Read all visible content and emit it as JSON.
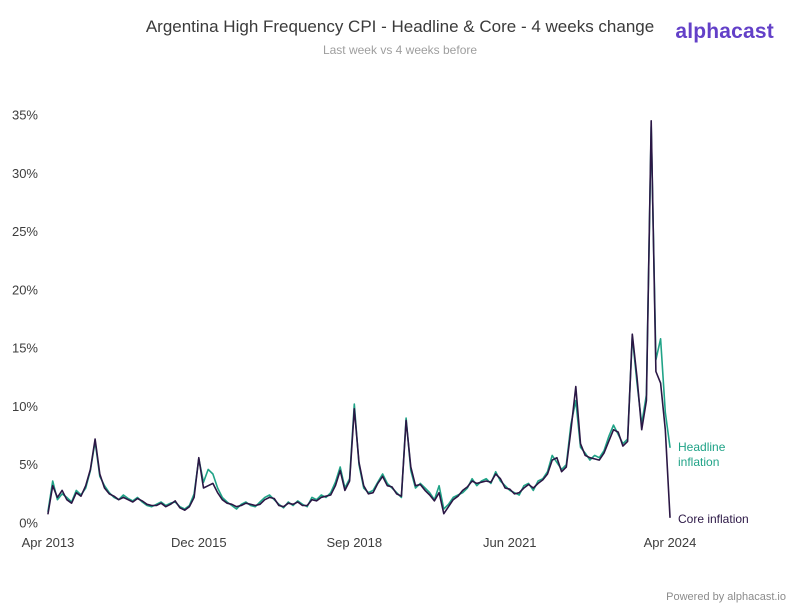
{
  "header": {
    "title": "Argentina High Frequency CPI - Headline & Core - 4 weeks change",
    "subtitle": "Last week vs 4 weeks before",
    "logo_text": "alphacast"
  },
  "footer": {
    "credit": "Powered by alphacast.io"
  },
  "colors": {
    "logo_purple": "#6340c8",
    "headline_teal": "#20a387",
    "core_dark": "#2b1745",
    "axis_text": "#3d3d3d",
    "subtitle_gray": "#9e9e9e",
    "credit_gray": "#8c8c8c",
    "background": "#ffffff"
  },
  "chart_data": {
    "type": "line",
    "title": "Argentina High Frequency CPI - Headline & Core - 4 weeks change",
    "subtitle": "Last week vs 4 weeks before",
    "xlabel": "",
    "ylabel": "",
    "x_unit": "months since Apr 2013 (high-frequency weekly series, monthly approximation)",
    "x_range": [
      0,
      132
    ],
    "ylim": [
      0,
      35
    ],
    "y_ticks": [
      0,
      5,
      10,
      15,
      20,
      25,
      30,
      35
    ],
    "y_tick_suffix": "%",
    "x_tick_positions": [
      0,
      32,
      65,
      98,
      132
    ],
    "x_tick_labels": [
      "Apr 2013",
      "Dec 2015",
      "Sep 2018",
      "Jun 2021",
      "Apr 2024"
    ],
    "grid": false,
    "legend_position": "right-end-labels",
    "series": [
      {
        "name": "Headline inflation",
        "color": "#20a387",
        "values": [
          1.0,
          3.6,
          2.0,
          2.5,
          2.2,
          1.8,
          2.8,
          2.4,
          3.0,
          4.5,
          7.0,
          4.0,
          3.2,
          2.6,
          2.2,
          2.0,
          2.4,
          2.1,
          1.9,
          2.2,
          1.8,
          1.5,
          1.4,
          1.6,
          1.8,
          1.5,
          1.7,
          1.8,
          1.4,
          1.2,
          1.5,
          2.5,
          5.5,
          3.5,
          4.6,
          4.2,
          3.0,
          2.2,
          1.8,
          1.5,
          1.2,
          1.6,
          1.8,
          1.5,
          1.4,
          1.8,
          2.2,
          2.4,
          2.0,
          1.6,
          1.3,
          1.8,
          1.5,
          1.9,
          1.6,
          1.4,
          2.2,
          2.0,
          2.4,
          2.2,
          2.6,
          3.5,
          4.8,
          3.0,
          3.8,
          10.2,
          5.0,
          3.0,
          2.6,
          2.8,
          3.5,
          4.2,
          3.4,
          3.0,
          2.6,
          2.2,
          9.0,
          4.5,
          3.0,
          3.4,
          3.0,
          2.6,
          2.0,
          3.2,
          1.2,
          1.6,
          2.2,
          2.4,
          2.6,
          3.0,
          3.8,
          3.2,
          3.6,
          3.8,
          3.4,
          4.4,
          3.6,
          3.2,
          2.8,
          2.6,
          2.4,
          3.2,
          3.4,
          2.8,
          3.6,
          3.8,
          4.4,
          5.8,
          5.2,
          4.6,
          5.0,
          8.5,
          10.5,
          6.5,
          6.0,
          5.4,
          5.8,
          5.6,
          6.2,
          7.4,
          8.4,
          7.6,
          6.8,
          7.2,
          16.0,
          12.0,
          8.5,
          11.0,
          34.0,
          14.0,
          15.8,
          9.5,
          6.5
        ]
      },
      {
        "name": "Core inflation",
        "color": "#2b1745",
        "values": [
          0.8,
          3.2,
          2.2,
          2.8,
          2.0,
          1.7,
          2.6,
          2.3,
          3.2,
          4.6,
          7.2,
          4.2,
          3.0,
          2.5,
          2.3,
          2.0,
          2.2,
          2.0,
          1.8,
          2.1,
          1.9,
          1.6,
          1.5,
          1.5,
          1.7,
          1.4,
          1.6,
          1.9,
          1.3,
          1.1,
          1.4,
          2.2,
          5.6,
          3.0,
          3.2,
          3.4,
          2.6,
          2.0,
          1.7,
          1.6,
          1.4,
          1.5,
          1.7,
          1.6,
          1.5,
          1.6,
          2.0,
          2.2,
          2.1,
          1.5,
          1.4,
          1.7,
          1.6,
          1.8,
          1.5,
          1.5,
          2.0,
          1.9,
          2.2,
          2.3,
          2.4,
          3.2,
          4.5,
          2.8,
          3.6,
          9.8,
          5.2,
          3.2,
          2.5,
          2.6,
          3.4,
          4.0,
          3.2,
          3.1,
          2.5,
          2.3,
          8.8,
          4.8,
          3.2,
          3.3,
          2.8,
          2.4,
          1.9,
          2.6,
          0.8,
          1.4,
          2.0,
          2.3,
          2.8,
          3.1,
          3.6,
          3.4,
          3.5,
          3.6,
          3.5,
          4.2,
          3.8,
          3.0,
          2.9,
          2.5,
          2.6,
          3.0,
          3.3,
          3.0,
          3.4,
          3.7,
          4.2,
          5.4,
          5.6,
          4.4,
          4.8,
          8.0,
          11.7,
          6.8,
          5.8,
          5.6,
          5.5,
          5.4,
          6.0,
          7.0,
          8.0,
          7.8,
          6.6,
          7.0,
          16.2,
          12.5,
          8.0,
          10.5,
          34.5,
          13.0,
          12.0,
          8.0,
          0.5
        ]
      }
    ]
  }
}
